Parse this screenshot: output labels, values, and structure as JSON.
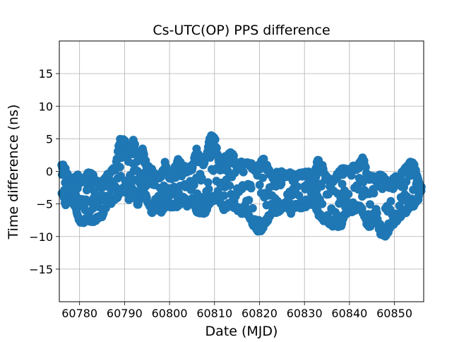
{
  "chart_data": {
    "type": "scatter",
    "title": "Cs-UTC(OP) PPS difference",
    "xlabel": "Date (MJD)",
    "ylabel": "Time difference (ns)",
    "xlim": [
      60775.5,
      60856.5
    ],
    "ylim": [
      -20,
      20
    ],
    "xticks": [
      60780,
      60790,
      60800,
      60810,
      60820,
      60830,
      60840,
      60850
    ],
    "yticks": [
      -15,
      -10,
      -5,
      0,
      5,
      10,
      15
    ],
    "grid": true,
    "marker_color": "#1f77b4",
    "envelope": {
      "x": [
        60776,
        60777,
        60778,
        60779,
        60780,
        60781,
        60782,
        60783,
        60784,
        60785,
        60786,
        60787,
        60788,
        60789,
        60790,
        60791,
        60792,
        60793,
        60794,
        60795,
        60796,
        60797,
        60798,
        60799,
        60800,
        60801,
        60802,
        60803,
        60804,
        60805,
        60806,
        60807,
        60808,
        60809,
        60810,
        60811,
        60812,
        60813,
        60814,
        60815,
        60816,
        60817,
        60818,
        60819,
        60820,
        60821,
        60822,
        60823,
        60824,
        60825,
        60826,
        60827,
        60828,
        60829,
        60830,
        60831,
        60832,
        60833,
        60834,
        60835,
        60836,
        60837,
        60838,
        60839,
        60840,
        60841,
        60842,
        60843,
        60844,
        60845,
        60846,
        60847,
        60848,
        60849,
        60850,
        60851,
        60852,
        60853,
        60854,
        60855,
        60856
      ],
      "y_max": [
        1.5,
        0.5,
        -1.5,
        -0.5,
        -0.5,
        -1.0,
        0.0,
        -0.5,
        -1.5,
        -1.5,
        -0.5,
        0.5,
        1.0,
        5.5,
        5.0,
        3.0,
        5.0,
        2.5,
        3.5,
        1.0,
        0.5,
        -0.5,
        -0.5,
        1.5,
        -0.5,
        0.5,
        2.0,
        1.0,
        0.5,
        1.0,
        3.5,
        2.5,
        2.0,
        5.5,
        5.5,
        2.0,
        2.0,
        3.0,
        3.0,
        1.0,
        1.5,
        1.5,
        1.5,
        0.5,
        1.5,
        2.0,
        0.5,
        -0.5,
        0.0,
        0.0,
        -0.5,
        0.0,
        -0.5,
        0.0,
        0.0,
        0.0,
        -0.5,
        2.0,
        1.0,
        -0.5,
        -1.5,
        -0.5,
        0.5,
        0.5,
        0.5,
        1.0,
        1.0,
        2.5,
        -0.5,
        -0.5,
        -0.5,
        -0.5,
        -1.0,
        -2.5,
        -0.5,
        -1.0,
        0.5,
        1.0,
        2.0,
        0.0,
        -2.5
      ],
      "y_min": [
        -3.5,
        -5.5,
        -4.5,
        -5.5,
        -8.0,
        -8.0,
        -8.0,
        -8.0,
        -7.5,
        -7.0,
        -5.5,
        -5.0,
        -4.5,
        -3.5,
        -3.0,
        -4.5,
        -3.5,
        -5.5,
        -3.5,
        -4.5,
        -6.5,
        -5.5,
        -6.5,
        -5.5,
        -5.5,
        -6.0,
        -5.5,
        -4.5,
        -5.5,
        -4.5,
        -6.5,
        -6.5,
        -6.5,
        -5.0,
        -4.5,
        -4.5,
        -6.0,
        -5.5,
        -5.5,
        -6.0,
        -6.5,
        -6.5,
        -7.5,
        -9.0,
        -9.5,
        -8.5,
        -7.5,
        -6.5,
        -6.5,
        -6.0,
        -5.5,
        -6.5,
        -5.5,
        -6.0,
        -5.5,
        -5.5,
        -5.0,
        -7.0,
        -7.5,
        -8.0,
        -8.5,
        -8.5,
        -9.0,
        -7.0,
        -6.5,
        -6.5,
        -5.5,
        -6.5,
        -8.5,
        -8.5,
        -7.5,
        -10.0,
        -10.0,
        -9.0,
        -8.0,
        -7.5,
        -6.5,
        -6.5,
        -5.5,
        -5.0,
        -3.0
      ]
    }
  }
}
